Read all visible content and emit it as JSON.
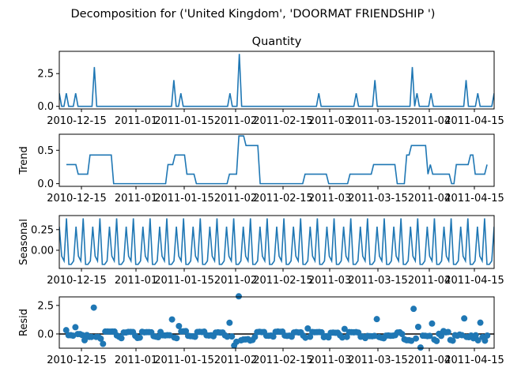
{
  "suptitle": "Decomposition for ('United Kingdom', 'DOORMAT FRIENDSHIP ')",
  "x_tick_labels": [
    "2010-12-15",
    "2011-01",
    "2011-01-15",
    "2011-02",
    "2011-02-15",
    "2011-03",
    "2011-03-15",
    "2011-04",
    "2011-04-15"
  ],
  "line_color": "#1f77b4",
  "chart_data": [
    {
      "type": "line",
      "title": "Quantity",
      "ylabel": "",
      "ylim": [
        -0.2,
        4.2
      ],
      "yticks": [
        0.0,
        2.5
      ],
      "y_tick_labels": [
        "0.0",
        "2.5"
      ],
      "values": [
        1,
        0,
        0,
        1,
        0,
        0,
        0,
        1,
        0,
        0,
        0,
        0,
        0,
        0,
        0,
        3,
        0,
        0,
        0,
        0,
        0,
        0,
        0,
        0,
        0,
        0,
        0,
        0,
        0,
        0,
        0,
        0,
        0,
        0,
        0,
        0,
        0,
        0,
        0,
        0,
        0,
        0,
        0,
        0,
        0,
        0,
        0,
        0,
        0,
        2,
        0,
        0,
        1,
        0,
        0,
        0,
        0,
        0,
        0,
        0,
        0,
        0,
        0,
        0,
        0,
        0,
        0,
        0,
        0,
        0,
        0,
        0,
        0,
        1,
        0,
        0,
        0,
        4,
        0,
        0,
        0,
        0,
        0,
        0,
        0,
        0,
        0,
        0,
        0,
        0,
        0,
        0,
        0,
        0,
        0,
        0,
        0,
        0,
        0,
        0,
        0,
        0,
        0,
        0,
        0,
        0,
        0,
        0,
        0,
        0,
        0,
        1,
        0,
        0,
        0,
        0,
        0,
        0,
        0,
        0,
        0,
        0,
        0,
        0,
        0,
        0,
        0,
        1,
        0,
        0,
        0,
        0,
        0,
        0,
        0,
        2,
        0,
        0,
        0,
        0,
        0,
        0,
        0,
        0,
        0,
        0,
        0,
        0,
        0,
        0,
        0,
        3,
        0,
        1,
        0,
        0,
        0,
        0,
        0,
        1,
        0,
        0,
        0,
        0,
        0,
        0,
        0,
        0,
        0,
        0,
        0,
        0,
        0,
        0,
        2,
        0,
        0,
        0,
        0,
        1,
        0,
        0,
        0,
        0,
        0,
        0,
        1
      ]
    },
    {
      "type": "line",
      "title": "",
      "ylabel": "Trend",
      "ylim": [
        -0.04,
        0.74
      ],
      "yticks": [
        0.0,
        0.5
      ],
      "y_tick_labels": [
        "0.0",
        "0.5"
      ],
      "values": [
        null,
        null,
        null,
        0.286,
        0.286,
        0.286,
        0.286,
        0.286,
        0.143,
        0.143,
        0.143,
        0.143,
        0.143,
        0.429,
        0.429,
        0.429,
        0.429,
        0.429,
        0.429,
        0.429,
        0.429,
        0.429,
        0.429,
        0.0,
        0.0,
        0.0,
        0.0,
        0.0,
        0.0,
        0.0,
        0.0,
        0.0,
        0.0,
        0.0,
        0.0,
        0.0,
        0.0,
        0.0,
        0.0,
        0.0,
        0.0,
        0.0,
        0.0,
        0.0,
        0.0,
        0.0,
        0.286,
        0.286,
        0.286,
        0.429,
        0.429,
        0.429,
        0.429,
        0.429,
        0.143,
        0.143,
        0.143,
        0.143,
        0.0,
        0.0,
        0.0,
        0.0,
        0.0,
        0.0,
        0.0,
        0.0,
        0.0,
        0.0,
        0.0,
        0.0,
        0.0,
        0.0,
        0.143,
        0.143,
        0.143,
        0.143,
        0.714,
        0.714,
        0.714,
        0.571,
        0.571,
        0.571,
        0.571,
        0.571,
        0.571,
        0.0,
        0.0,
        0.0,
        0.0,
        0.0,
        0.0,
        0.0,
        0.0,
        0.0,
        0.0,
        0.0,
        0.0,
        0.0,
        0.0,
        0.0,
        0.0,
        0.0,
        0.0,
        0.0,
        0.143,
        0.143,
        0.143,
        0.143,
        0.143,
        0.143,
        0.143,
        0.143,
        0.143,
        0.143,
        0.0,
        0.0,
        0.0,
        0.0,
        0.0,
        0.0,
        0.0,
        0.0,
        0.0,
        0.143,
        0.143,
        0.143,
        0.143,
        0.143,
        0.143,
        0.143,
        0.143,
        0.143,
        0.143,
        0.286,
        0.286,
        0.286,
        0.286,
        0.286,
        0.286,
        0.286,
        0.286,
        0.286,
        0.286,
        0.0,
        0.0,
        0.0,
        0.0,
        0.429,
        0.429,
        0.571,
        0.571,
        0.571,
        0.571,
        0.571,
        0.571,
        0.571,
        0.143,
        0.286,
        0.143,
        0.143,
        0.143,
        0.143,
        0.143,
        0.143,
        0.143,
        0.143,
        0.0,
        0.0,
        0.286,
        0.286,
        0.286,
        0.286,
        0.286,
        0.286,
        0.429,
        0.429,
        0.143,
        0.143,
        0.143,
        0.143,
        0.143,
        0.286,
        null,
        null,
        null
      ]
    },
    {
      "type": "line",
      "title": "",
      "ylabel": "Seasonal",
      "ylim": [
        -0.22,
        0.42
      ],
      "yticks": [
        0.0,
        0.25
      ],
      "y_tick_labels": [
        "0.00",
        "0.25"
      ],
      "season_pattern": [
        0.286,
        -0.071,
        -0.129,
        0.386,
        -0.171,
        -0.171,
        -0.129
      ],
      "period": 7,
      "n": 183
    },
    {
      "type": "scatter",
      "title": "",
      "ylabel": "Resid",
      "ylim": [
        -1.25,
        3.25
      ],
      "yticks": [
        0.0,
        2.5
      ],
      "y_tick_labels": [
        "0.0",
        "2.5"
      ],
      "baseline": 0,
      "values": [
        null,
        null,
        null,
        0.33,
        -0.11,
        -0.11,
        -0.15,
        0.59,
        -0.01,
        -0.01,
        -0.1,
        -0.55,
        -0.1,
        -0.26,
        -0.26,
        2.31,
        -0.26,
        -0.26,
        -0.41,
        -0.87,
        0.21,
        0.21,
        0.2,
        0.21,
        0.21,
        -0.13,
        -0.25,
        -0.37,
        0.13,
        0.13,
        0.18,
        0.18,
        0.17,
        -0.16,
        -0.35,
        -0.32,
        0.19,
        0.14,
        0.16,
        0.16,
        0.14,
        -0.19,
        -0.24,
        -0.28,
        0.17,
        -0.12,
        -0.13,
        -0.11,
        -0.12,
        1.27,
        -0.31,
        -0.37,
        0.69,
        0.22,
        0.23,
        0.25,
        -0.16,
        -0.19,
        -0.2,
        -0.25,
        0.17,
        0.19,
        0.17,
        0.2,
        -0.12,
        -0.14,
        -0.12,
        -0.2,
        0.12,
        0.14,
        0.12,
        0.13,
        -0.12,
        -0.24,
        0.98,
        -0.22,
        -1.02,
        -0.69,
        3.3,
        -0.56,
        -0.49,
        -0.48,
        -0.45,
        -0.58,
        -0.53,
        -0.26,
        0.16,
        0.19,
        0.16,
        0.17,
        -0.15,
        -0.16,
        -0.14,
        -0.23,
        0.19,
        0.21,
        0.19,
        0.2,
        -0.14,
        -0.17,
        -0.15,
        -0.24,
        0.13,
        0.16,
        0.13,
        0.14,
        -0.14,
        -0.33,
        0.48,
        -0.25,
        0.17,
        0.15,
        0.16,
        0.17,
        0.14,
        -0.28,
        -0.19,
        -0.3,
        0.1,
        0.12,
        0.1,
        0.11,
        -0.12,
        -0.31,
        0.44,
        -0.26,
        0.16,
        0.15,
        0.14,
        0.16,
        0.12,
        -0.25,
        -0.22,
        -0.36,
        -0.18,
        -0.19,
        -0.2,
        -0.17,
        1.3,
        -0.27,
        -0.33,
        -0.38,
        -0.15,
        -0.13,
        -0.16,
        -0.15,
        -0.11,
        0.13,
        0.14,
        -0.01,
        -0.47,
        -0.55,
        -0.55,
        -0.6,
        2.2,
        -0.4,
        0.62,
        -1.19,
        -0.15,
        -0.16,
        -0.19,
        -0.17,
        0.91,
        -0.5,
        -0.62,
        0.01,
        -0.17,
        0.25,
        0.14,
        0.17,
        -0.53,
        -0.59,
        -0.11,
        -0.15,
        -0.06,
        -0.11,
        1.36,
        -0.26,
        -0.28,
        -0.14,
        -0.38,
        -0.12,
        -0.56,
        0.99,
        -0.27,
        -0.59,
        -0.14,
        null,
        null,
        null
      ]
    }
  ]
}
